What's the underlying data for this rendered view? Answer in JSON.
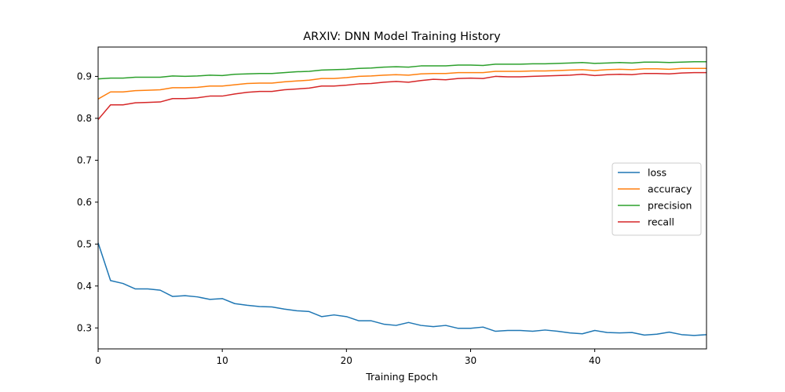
{
  "chart_data": {
    "type": "line",
    "title": "ARXIV: DNN Model Training History",
    "xlabel": "Training Epoch",
    "ylabel": "",
    "xlim": [
      0,
      49
    ],
    "ylim": [
      0.25,
      0.97
    ],
    "xticks": [
      0,
      10,
      20,
      30,
      40
    ],
    "yticks": [
      0.3,
      0.4,
      0.5,
      0.6,
      0.7,
      0.8,
      0.9
    ],
    "grid": false,
    "legend_position": "center-right",
    "x": [
      0,
      1,
      2,
      3,
      4,
      5,
      6,
      7,
      8,
      9,
      10,
      11,
      12,
      13,
      14,
      15,
      16,
      17,
      18,
      19,
      20,
      21,
      22,
      23,
      24,
      25,
      26,
      27,
      28,
      29,
      30,
      31,
      32,
      33,
      34,
      35,
      36,
      37,
      38,
      39,
      40,
      41,
      42,
      43,
      44,
      45,
      46,
      47,
      48,
      49
    ],
    "series": [
      {
        "name": "loss",
        "color": "#1f77b4",
        "values": [
          0.503,
          0.413,
          0.406,
          0.393,
          0.393,
          0.39,
          0.375,
          0.377,
          0.374,
          0.368,
          0.37,
          0.358,
          0.354,
          0.351,
          0.35,
          0.345,
          0.341,
          0.339,
          0.327,
          0.331,
          0.327,
          0.317,
          0.317,
          0.309,
          0.306,
          0.313,
          0.306,
          0.303,
          0.306,
          0.299,
          0.299,
          0.302,
          0.292,
          0.294,
          0.294,
          0.292,
          0.295,
          0.292,
          0.288,
          0.286,
          0.294,
          0.289,
          0.288,
          0.289,
          0.283,
          0.285,
          0.29,
          0.284,
          0.282,
          0.284
        ]
      },
      {
        "name": "accuracy",
        "color": "#ff7f0e",
        "values": [
          0.846,
          0.863,
          0.863,
          0.866,
          0.867,
          0.868,
          0.873,
          0.873,
          0.874,
          0.877,
          0.877,
          0.88,
          0.883,
          0.884,
          0.884,
          0.887,
          0.889,
          0.891,
          0.895,
          0.895,
          0.897,
          0.9,
          0.901,
          0.903,
          0.904,
          0.903,
          0.906,
          0.907,
          0.907,
          0.909,
          0.909,
          0.909,
          0.912,
          0.912,
          0.912,
          0.913,
          0.913,
          0.914,
          0.915,
          0.916,
          0.914,
          0.916,
          0.917,
          0.916,
          0.918,
          0.918,
          0.917,
          0.919,
          0.919,
          0.919
        ]
      },
      {
        "name": "precision",
        "color": "#2ca02c",
        "values": [
          0.894,
          0.896,
          0.896,
          0.898,
          0.898,
          0.898,
          0.901,
          0.9,
          0.901,
          0.903,
          0.902,
          0.905,
          0.906,
          0.907,
          0.907,
          0.909,
          0.911,
          0.912,
          0.915,
          0.916,
          0.917,
          0.919,
          0.92,
          0.922,
          0.923,
          0.922,
          0.925,
          0.925,
          0.925,
          0.927,
          0.927,
          0.926,
          0.929,
          0.929,
          0.929,
          0.93,
          0.93,
          0.931,
          0.932,
          0.933,
          0.931,
          0.932,
          0.933,
          0.932,
          0.934,
          0.934,
          0.933,
          0.934,
          0.935,
          0.935
        ]
      },
      {
        "name": "recall",
        "color": "#d62728",
        "values": [
          0.797,
          0.832,
          0.832,
          0.837,
          0.838,
          0.839,
          0.847,
          0.847,
          0.849,
          0.853,
          0.853,
          0.858,
          0.862,
          0.864,
          0.864,
          0.868,
          0.87,
          0.872,
          0.877,
          0.877,
          0.879,
          0.882,
          0.883,
          0.886,
          0.888,
          0.886,
          0.89,
          0.893,
          0.892,
          0.895,
          0.896,
          0.895,
          0.9,
          0.899,
          0.899,
          0.9,
          0.901,
          0.902,
          0.903,
          0.905,
          0.902,
          0.904,
          0.905,
          0.904,
          0.907,
          0.907,
          0.906,
          0.908,
          0.909,
          0.909
        ]
      }
    ]
  }
}
